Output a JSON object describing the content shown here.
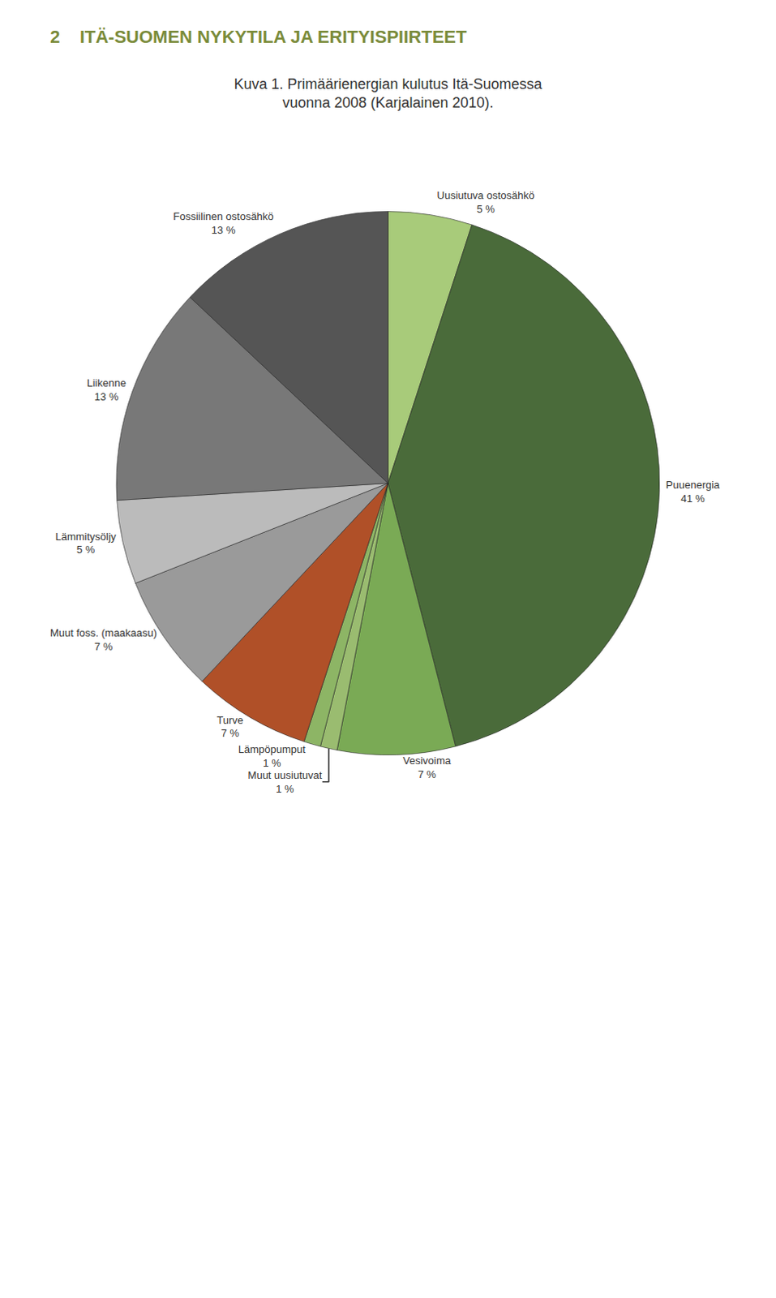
{
  "chart_data": {
    "type": "pie",
    "title": "Kuva 1. Primäärienergian kulutus Itä-Suomessa\nvuonna 2008 (Karjalainen 2010).",
    "annotations": [
      "2    ITÄ-SUOMEN NYKYTILA JA ERITYISPIIRTEET"
    ],
    "categories": [
      "Uusiutuva ostosähkö",
      "Puuenergia",
      "Vesivoima",
      "Muut uusiutuvat",
      "Lämpöpumput",
      "Turve",
      "Muut foss. (maakaasu)",
      "Lämmitysöljy",
      "Liikenne",
      "Fossiilinen ostosähkö"
    ],
    "values": [
      5,
      41,
      7,
      1,
      1,
      7,
      7,
      5,
      13,
      13
    ],
    "value_labels": [
      "5 %",
      "41 %",
      "7 %",
      "1 %",
      "1 %",
      "7 %",
      "7 %",
      "5 %",
      "13 %",
      "13 %"
    ],
    "colors": [
      "#a8cb7a",
      "#4a6b3a",
      "#7aaa55",
      "#9abc70",
      "#8db565",
      "#b05028",
      "#9a9a9a",
      "#bbbbbb",
      "#787878",
      "#555555"
    ],
    "data_labels": true
  }
}
